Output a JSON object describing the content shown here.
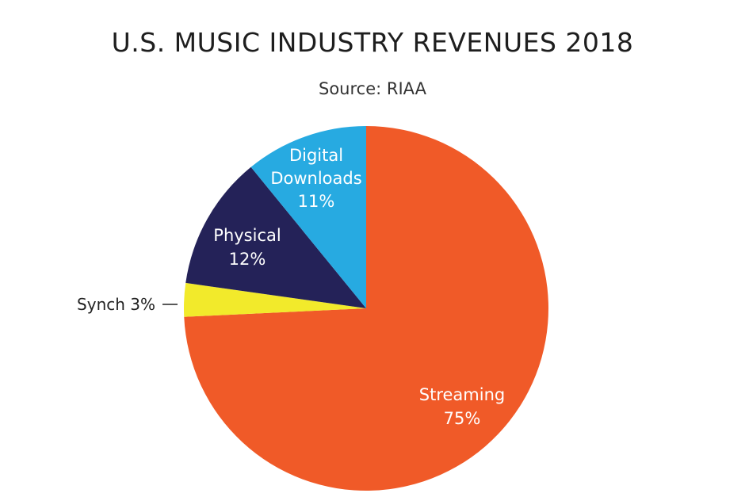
{
  "chart_data": {
    "type": "pie",
    "title": "U.S. MUSIC INDUSTRY REVENUES 2018",
    "subtitle": "Source: RIAA",
    "slices": [
      {
        "name": "Streaming",
        "label_lines": [
          "Streaming",
          "75%"
        ],
        "value": 75,
        "color": "#f05a28",
        "text_color": "#ffffff"
      },
      {
        "name": "Synch",
        "label_lines": [
          "Synch 3%"
        ],
        "value": 3,
        "color": "#f2ea2b",
        "text_color": "#222222"
      },
      {
        "name": "Physical",
        "label_lines": [
          "Physical",
          "12%"
        ],
        "value": 12,
        "color": "#242258",
        "text_color": "#ffffff"
      },
      {
        "name": "Digital Downloads",
        "label_lines": [
          "Digital",
          "Downloads",
          "11%"
        ],
        "value": 11,
        "color": "#27aae1",
        "text_color": "#ffffff"
      }
    ]
  }
}
